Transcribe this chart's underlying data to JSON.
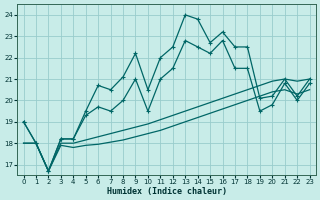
{
  "xlabel": "Humidex (Indice chaleur)",
  "bg_color": "#c8ece8",
  "grid_color": "#99cccc",
  "line_color": "#006666",
  "xlim": [
    -0.5,
    23.5
  ],
  "ylim": [
    16.5,
    24.5
  ],
  "xticks": [
    0,
    1,
    2,
    3,
    4,
    5,
    6,
    7,
    8,
    9,
    10,
    11,
    12,
    13,
    14,
    15,
    16,
    17,
    18,
    19,
    20,
    21,
    22,
    23
  ],
  "yticks": [
    17,
    18,
    19,
    20,
    21,
    22,
    23,
    24
  ],
  "series1_x": [
    0,
    1,
    2,
    3,
    4,
    5,
    6,
    7,
    8,
    9,
    10,
    11,
    12,
    13,
    14,
    15,
    16,
    17,
    18,
    19,
    20,
    21,
    22,
    23
  ],
  "series1_y": [
    19.0,
    18.0,
    16.7,
    18.2,
    18.2,
    19.5,
    20.7,
    20.5,
    21.1,
    22.2,
    20.5,
    22.0,
    22.5,
    24.0,
    23.8,
    22.7,
    23.2,
    22.5,
    22.5,
    20.1,
    20.2,
    21.0,
    20.2,
    21.0
  ],
  "series2_x": [
    0,
    1,
    2,
    3,
    4,
    5,
    6,
    7,
    8,
    9,
    10,
    11,
    12,
    13,
    14,
    15,
    16,
    17,
    18,
    19,
    20,
    21,
    22,
    23
  ],
  "series2_y": [
    19.0,
    18.0,
    16.7,
    18.2,
    18.2,
    19.3,
    19.7,
    19.5,
    20.0,
    21.0,
    19.5,
    21.0,
    21.5,
    22.8,
    22.5,
    22.2,
    22.8,
    21.5,
    21.5,
    19.5,
    19.8,
    20.8,
    20.0,
    20.8
  ],
  "series3_x": [
    0,
    1,
    2,
    3,
    4,
    5,
    6,
    7,
    8,
    9,
    10,
    11,
    12,
    13,
    14,
    15,
    16,
    17,
    18,
    19,
    20,
    21,
    22,
    23
  ],
  "series3_y": [
    18.0,
    18.0,
    16.7,
    18.0,
    18.0,
    18.15,
    18.3,
    18.45,
    18.6,
    18.75,
    18.9,
    19.1,
    19.3,
    19.5,
    19.7,
    19.9,
    20.1,
    20.3,
    20.5,
    20.7,
    20.9,
    21.0,
    20.9,
    21.0
  ],
  "series4_x": [
    0,
    1,
    2,
    3,
    4,
    5,
    6,
    7,
    8,
    9,
    10,
    11,
    12,
    13,
    14,
    15,
    16,
    17,
    18,
    19,
    20,
    21,
    22,
    23
  ],
  "series4_y": [
    18.0,
    18.0,
    16.7,
    17.9,
    17.8,
    17.9,
    17.95,
    18.05,
    18.15,
    18.3,
    18.45,
    18.6,
    18.8,
    19.0,
    19.2,
    19.4,
    19.6,
    19.8,
    20.0,
    20.2,
    20.4,
    20.5,
    20.3,
    20.5
  ]
}
